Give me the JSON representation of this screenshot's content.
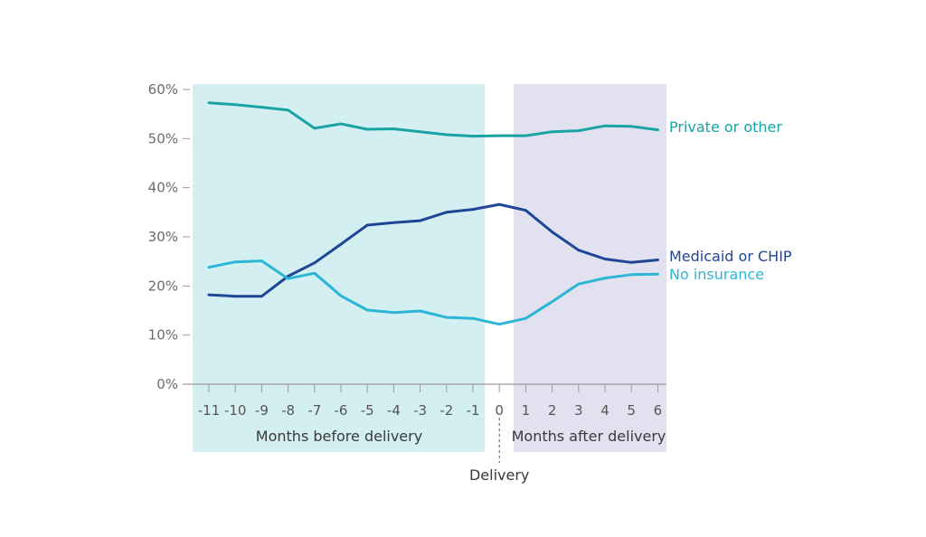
{
  "chart_data": {
    "type": "line",
    "title": "",
    "xlabel": "",
    "ylabel": "",
    "x": [
      -11,
      -10,
      -9,
      -8,
      -7,
      -6,
      -5,
      -4,
      -3,
      -2,
      -1,
      0,
      1,
      2,
      3,
      4,
      5,
      6
    ],
    "x_tick_labels": [
      "-11",
      "-10",
      "-9",
      "-8",
      "-7",
      "-6",
      "-5",
      "-4",
      "-3",
      "-2",
      "-1",
      "0",
      "1",
      "2",
      "3",
      "4",
      "5",
      "6"
    ],
    "xlim": [
      -11,
      6
    ],
    "ylim": [
      0,
      60
    ],
    "y_ticks": [
      0,
      10,
      20,
      30,
      40,
      50,
      60
    ],
    "y_tick_labels": [
      "0%",
      "10%",
      "20%",
      "30%",
      "40%",
      "50%",
      "60%"
    ],
    "grid": false,
    "legend": "right, inline labels at line ends",
    "series": [
      {
        "name": "Private or other",
        "color": "#1aa3a3",
        "values": [
          57.3,
          56.9,
          56.4,
          55.8,
          52.1,
          53.0,
          51.9,
          52.0,
          51.4,
          50.8,
          50.5,
          50.6,
          50.6,
          51.4,
          51.6,
          52.6,
          52.5,
          51.8
        ]
      },
      {
        "name": "Medicaid or CHIP",
        "color": "#1f4597",
        "values": [
          18.2,
          17.9,
          17.9,
          22.0,
          24.7,
          28.5,
          32.4,
          32.9,
          33.3,
          35.0,
          35.6,
          36.6,
          35.4,
          31.0,
          27.3,
          25.5,
          24.8,
          25.3
        ]
      },
      {
        "name": "No insurance",
        "color": "#2bb6d6",
        "values": [
          23.8,
          24.9,
          25.1,
          21.5,
          22.6,
          18.0,
          15.1,
          14.6,
          14.9,
          13.6,
          13.4,
          12.2,
          13.4,
          16.8,
          20.4,
          21.6,
          22.3,
          22.4
        ]
      }
    ],
    "regions": [
      {
        "label": "Months before delivery",
        "from": -11,
        "to": -1,
        "color": "#d4eff2"
      },
      {
        "label": "Months after delivery",
        "from": 1,
        "to": 6,
        "color": "#e2e1f0"
      }
    ],
    "annotations": [
      {
        "label": "Delivery",
        "x": 0,
        "style": "dashed vertical marker"
      }
    ]
  }
}
